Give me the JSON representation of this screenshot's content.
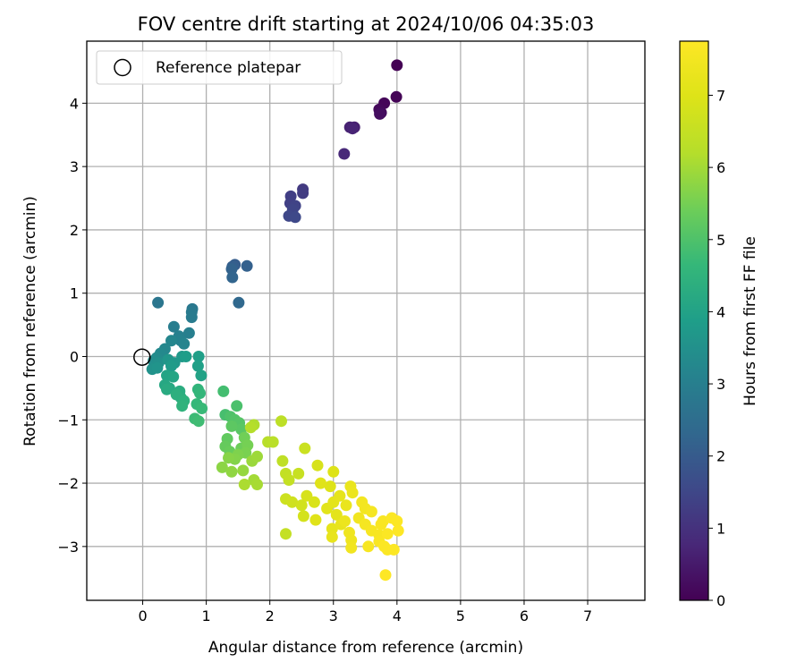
{
  "chart_data": {
    "type": "scatter",
    "title": "FOV centre drift starting at 2024/10/06 04:35:03",
    "xlabel": "Angular distance from reference (arcmin)",
    "ylabel": "Rotation from reference (arcmin)",
    "xlim": [
      -0.88,
      7.9
    ],
    "ylim": [
      -3.85,
      4.98
    ],
    "xticks": [
      0,
      1,
      2,
      3,
      4,
      5,
      6,
      7
    ],
    "yticks": [
      -3,
      -2,
      -1,
      0,
      1,
      2,
      3,
      4
    ],
    "grid": true,
    "legend": {
      "position": "top-left",
      "entries": [
        "Reference platepar"
      ]
    },
    "reference_point": {
      "x": 0,
      "y": 0,
      "label": "Reference platepar"
    },
    "colorbar": {
      "label": "Hours from first FF file",
      "colormap": "viridis",
      "min": 0,
      "max": 7.75,
      "ticks": [
        0,
        1,
        2,
        3,
        4,
        5,
        6,
        7
      ]
    },
    "series": [
      {
        "points": [
          [
            4.0,
            4.6,
            0.0
          ],
          [
            3.99,
            4.1,
            0.05
          ],
          [
            3.8,
            4.0,
            0.1
          ],
          [
            3.72,
            3.9,
            0.15
          ],
          [
            3.75,
            3.85,
            0.2
          ],
          [
            3.73,
            3.83,
            0.25
          ],
          [
            3.33,
            3.62,
            0.6
          ],
          [
            3.26,
            3.62,
            0.65
          ],
          [
            3.3,
            3.6,
            0.7
          ],
          [
            3.17,
            3.2,
            0.8
          ],
          [
            2.52,
            2.64,
            1.2
          ],
          [
            2.52,
            2.58,
            1.25
          ],
          [
            2.33,
            2.53,
            1.3
          ],
          [
            2.32,
            2.42,
            1.35
          ],
          [
            2.4,
            2.38,
            1.4
          ],
          [
            2.36,
            2.32,
            1.45
          ],
          [
            2.3,
            2.22,
            1.5
          ],
          [
            2.4,
            2.2,
            1.55
          ],
          [
            1.45,
            1.45,
            2.05
          ],
          [
            1.41,
            1.42,
            2.1
          ],
          [
            1.64,
            1.43,
            2.15
          ],
          [
            1.4,
            1.38,
            2.2
          ],
          [
            1.41,
            1.25,
            2.25
          ],
          [
            1.51,
            0.85,
            2.35
          ],
          [
            0.24,
            0.85,
            2.75
          ],
          [
            0.78,
            0.75,
            2.8
          ],
          [
            0.77,
            0.7,
            2.85
          ],
          [
            0.77,
            0.62,
            2.9
          ],
          [
            0.49,
            0.47,
            2.95
          ],
          [
            0.73,
            0.37,
            3.0
          ],
          [
            0.57,
            0.32,
            3.05
          ],
          [
            0.6,
            0.25,
            3.1
          ],
          [
            0.65,
            0.2,
            3.15
          ],
          [
            0.45,
            0.25,
            3.2
          ],
          [
            0.35,
            0.12,
            3.25
          ],
          [
            0.28,
            0.05,
            3.3
          ],
          [
            0.22,
            -0.02,
            3.35
          ],
          [
            0.17,
            -0.07,
            3.4
          ],
          [
            0.2,
            -0.15,
            3.45
          ],
          [
            0.25,
            -0.1,
            3.5
          ],
          [
            0.15,
            -0.2,
            3.55
          ],
          [
            0.23,
            -0.18,
            3.6
          ],
          [
            0.4,
            -0.05,
            3.65
          ],
          [
            0.5,
            -0.1,
            3.7
          ],
          [
            0.62,
            0.0,
            3.75
          ],
          [
            0.45,
            -0.15,
            3.8
          ],
          [
            0.68,
            0.0,
            3.85
          ],
          [
            0.88,
            0.0,
            3.9
          ],
          [
            0.87,
            -0.15,
            3.95
          ],
          [
            0.92,
            -0.3,
            4.0
          ],
          [
            0.38,
            -0.3,
            4.05
          ],
          [
            0.48,
            -0.32,
            4.1
          ],
          [
            0.35,
            -0.45,
            4.15
          ],
          [
            0.42,
            -0.5,
            4.2
          ],
          [
            0.38,
            -0.52,
            4.25
          ],
          [
            0.58,
            -0.55,
            4.3
          ],
          [
            0.6,
            -0.65,
            4.35
          ],
          [
            0.53,
            -0.6,
            4.4
          ],
          [
            0.65,
            -0.7,
            4.45
          ],
          [
            0.62,
            -0.78,
            4.5
          ],
          [
            0.87,
            -0.52,
            4.55
          ],
          [
            0.9,
            -0.58,
            4.6
          ],
          [
            0.85,
            -0.75,
            4.65
          ],
          [
            0.93,
            -0.82,
            4.7
          ],
          [
            0.82,
            -0.98,
            4.75
          ],
          [
            0.88,
            -1.02,
            4.8
          ],
          [
            1.27,
            -0.55,
            4.85
          ],
          [
            1.3,
            -0.92,
            4.9
          ],
          [
            1.48,
            -0.78,
            4.95
          ],
          [
            1.38,
            -0.95,
            5.0
          ],
          [
            1.45,
            -1.0,
            5.05
          ],
          [
            1.52,
            -1.05,
            5.1
          ],
          [
            1.55,
            -1.15,
            5.15
          ],
          [
            1.4,
            -1.1,
            5.2
          ],
          [
            1.33,
            -1.3,
            5.25
          ],
          [
            1.3,
            -1.42,
            5.3
          ],
          [
            1.37,
            -1.5,
            5.35
          ],
          [
            1.55,
            -1.45,
            5.4
          ],
          [
            1.6,
            -1.28,
            5.45
          ],
          [
            1.65,
            -1.4,
            5.5
          ],
          [
            1.62,
            -1.52,
            5.55
          ],
          [
            1.5,
            -1.55,
            5.6
          ],
          [
            1.45,
            -1.62,
            5.65
          ],
          [
            1.35,
            -1.6,
            5.7
          ],
          [
            1.25,
            -1.75,
            5.75
          ],
          [
            1.4,
            -1.82,
            5.8
          ],
          [
            1.58,
            -1.8,
            5.85
          ],
          [
            1.72,
            -1.65,
            5.9
          ],
          [
            1.8,
            -1.58,
            5.95
          ],
          [
            1.75,
            -1.95,
            6.0
          ],
          [
            1.8,
            -2.02,
            6.05
          ],
          [
            1.6,
            -2.02,
            6.1
          ],
          [
            1.75,
            -1.08,
            6.15
          ],
          [
            1.7,
            -1.12,
            6.2
          ],
          [
            1.97,
            -1.35,
            6.25
          ],
          [
            2.05,
            -1.35,
            6.3
          ],
          [
            2.18,
            -1.02,
            6.35
          ],
          [
            2.2,
            -1.65,
            6.4
          ],
          [
            2.25,
            -1.85,
            6.45
          ],
          [
            2.3,
            -1.95,
            6.5
          ],
          [
            2.45,
            -1.85,
            6.55
          ],
          [
            2.55,
            -1.45,
            6.6
          ],
          [
            2.25,
            -2.25,
            6.65
          ],
          [
            2.35,
            -2.3,
            6.7
          ],
          [
            2.5,
            -2.35,
            6.75
          ],
          [
            2.53,
            -2.52,
            6.8
          ],
          [
            2.58,
            -2.2,
            6.85
          ],
          [
            2.7,
            -2.3,
            6.9
          ],
          [
            2.25,
            -2.8,
            6.5
          ],
          [
            2.75,
            -1.72,
            6.85
          ],
          [
            2.95,
            -2.05,
            7.0
          ],
          [
            3.0,
            -1.82,
            7.0
          ],
          [
            2.8,
            -2.0,
            7.05
          ],
          [
            2.72,
            -2.58,
            7.05
          ],
          [
            2.9,
            -2.4,
            7.1
          ],
          [
            3.0,
            -2.3,
            7.15
          ],
          [
            3.05,
            -2.5,
            7.15
          ],
          [
            3.1,
            -2.2,
            7.2
          ],
          [
            2.98,
            -2.72,
            7.2
          ],
          [
            2.98,
            -2.85,
            7.25
          ],
          [
            3.12,
            -2.65,
            7.25
          ],
          [
            3.2,
            -2.35,
            7.3
          ],
          [
            3.27,
            -2.05,
            7.3
          ],
          [
            3.3,
            -2.15,
            7.35
          ],
          [
            3.18,
            -2.6,
            7.35
          ],
          [
            3.25,
            -2.78,
            7.4
          ],
          [
            3.28,
            -2.9,
            7.4
          ],
          [
            3.28,
            -3.02,
            7.45
          ],
          [
            3.4,
            -2.55,
            7.45
          ],
          [
            3.45,
            -2.3,
            7.5
          ],
          [
            3.5,
            -2.4,
            7.5
          ],
          [
            3.5,
            -2.65,
            7.55
          ],
          [
            3.6,
            -2.45,
            7.55
          ],
          [
            3.55,
            -3.0,
            7.6
          ],
          [
            3.6,
            -2.75,
            7.6
          ],
          [
            3.72,
            -2.82,
            7.6
          ],
          [
            3.75,
            -2.65,
            7.65
          ],
          [
            3.78,
            -2.6,
            7.65
          ],
          [
            3.72,
            -2.92,
            7.65
          ],
          [
            3.8,
            -3.0,
            7.7
          ],
          [
            3.85,
            -2.8,
            7.7
          ],
          [
            3.92,
            -2.55,
            7.7
          ],
          [
            3.85,
            -3.05,
            7.7
          ],
          [
            3.95,
            -3.05,
            7.72
          ],
          [
            4.0,
            -2.6,
            7.72
          ],
          [
            4.02,
            -2.75,
            7.74
          ],
          [
            3.82,
            -3.45,
            7.75
          ]
        ]
      }
    ]
  }
}
